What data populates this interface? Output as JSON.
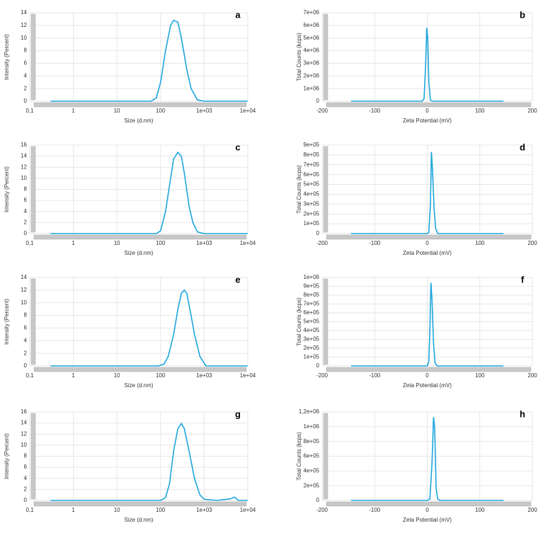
{
  "chart_data": [
    {
      "type": "line",
      "panel": "a",
      "xlabel": "Size (d.nm)",
      "ylabel": "Intensity (Percent)",
      "xscale": "log",
      "grid": true,
      "color": "#1ba6dd",
      "x": [
        0.3,
        60,
        80,
        100,
        130,
        170,
        200,
        250,
        300,
        400,
        500,
        700,
        1000,
        10000
      ],
      "values": [
        0,
        0,
        0.5,
        3,
        8,
        12,
        12.8,
        12.5,
        10,
        5,
        2,
        0.2,
        0,
        0
      ],
      "xlim": [
        0.1,
        10000
      ],
      "xticks": [
        {
          "value": 0.1,
          "label": "0,1"
        },
        1,
        10,
        100,
        {
          "value": 1000,
          "label": "1e+03"
        },
        {
          "value": 10000,
          "label": "1e+04"
        }
      ],
      "ylim": [
        0,
        14
      ],
      "yticks": [
        0,
        2,
        4,
        6,
        8,
        10,
        12,
        14
      ]
    },
    {
      "type": "line",
      "panel": "b",
      "xlabel": "Zeta Potential (mV)",
      "ylabel": "Total Counts (kcps)",
      "xscale": "linear",
      "grid": true,
      "color": "#1ba6dd",
      "x": [
        -145,
        -10,
        -6,
        -3,
        -1,
        1,
        3,
        6,
        10,
        145
      ],
      "values": [
        0,
        0,
        200000,
        3000000,
        5800000,
        5000000,
        1500000,
        100000,
        0,
        0
      ],
      "xlim": [
        -200,
        200
      ],
      "xticks": [
        -200,
        -100,
        0,
        100,
        200
      ],
      "ylim": [
        0,
        7000000
      ],
      "yticks": [
        0,
        {
          "value": 1000000,
          "label": "1e+06"
        },
        {
          "value": 2000000,
          "label": "2e+06"
        },
        {
          "value": 3000000,
          "label": "3e+06"
        },
        {
          "value": 4000000,
          "label": "4e+06"
        },
        {
          "value": 5000000,
          "label": "5e+06"
        },
        {
          "value": 6000000,
          "label": "6e+06"
        },
        {
          "value": 7000000,
          "label": "7e+06"
        }
      ]
    },
    {
      "type": "line",
      "panel": "c",
      "xlabel": "Size (d.nm)",
      "ylabel": "Intensity (Percent)",
      "xscale": "log",
      "grid": true,
      "color": "#1ba6dd",
      "x": [
        0.3,
        80,
        100,
        130,
        170,
        200,
        250,
        300,
        350,
        450,
        550,
        700,
        1000,
        10000
      ],
      "values": [
        0,
        0,
        0.5,
        4,
        10,
        13.5,
        14.7,
        14,
        11,
        5,
        2,
        0.3,
        0,
        0
      ],
      "xlim": [
        0.1,
        10000
      ],
      "xticks": [
        {
          "value": 0.1,
          "label": "0,1"
        },
        1,
        10,
        100,
        {
          "value": 1000,
          "label": "1e+03"
        },
        {
          "value": 10000,
          "label": "1e+04"
        }
      ],
      "ylim": [
        0,
        16
      ],
      "yticks": [
        0,
        2,
        4,
        6,
        8,
        10,
        12,
        14,
        16
      ]
    },
    {
      "type": "line",
      "panel": "d",
      "xlabel": "Zeta Potential (mV)",
      "ylabel": "Total Counts (kcps)",
      "xscale": "linear",
      "grid": true,
      "color": "#1ba6dd",
      "x": [
        -145,
        0,
        3,
        6,
        8,
        10,
        13,
        16,
        20,
        145
      ],
      "values": [
        0,
        0,
        10000,
        300000,
        830000,
        650000,
        250000,
        50000,
        0,
        0
      ],
      "xlim": [
        -200,
        200
      ],
      "xticks": [
        -200,
        -100,
        0,
        100,
        200
      ],
      "ylim": [
        0,
        900000
      ],
      "yticks": [
        0,
        {
          "value": 100000,
          "label": "1e+05"
        },
        {
          "value": 200000,
          "label": "2e+05"
        },
        {
          "value": 300000,
          "label": "3e+05"
        },
        {
          "value": 400000,
          "label": "4e+05"
        },
        {
          "value": 500000,
          "label": "5e+05"
        },
        {
          "value": 600000,
          "label": "6e+05"
        },
        {
          "value": 700000,
          "label": "7e+05"
        },
        {
          "value": 800000,
          "label": "8e+05"
        },
        {
          "value": 900000,
          "label": "9e+05"
        }
      ]
    },
    {
      "type": "line",
      "panel": "e",
      "xlabel": "Size (d.nm)",
      "ylabel": "Intensity (Percent)",
      "xscale": "log",
      "grid": true,
      "color": "#1ba6dd",
      "x": [
        0.3,
        90,
        120,
        150,
        200,
        250,
        300,
        350,
        400,
        500,
        600,
        800,
        1100,
        10000
      ],
      "values": [
        0,
        0,
        0.3,
        1.5,
        5,
        9,
        11.5,
        12,
        11.5,
        8,
        5,
        1.5,
        0,
        0
      ],
      "xlim": [
        0.1,
        10000
      ],
      "xticks": [
        {
          "value": 0.1,
          "label": "0,1"
        },
        1,
        10,
        100,
        {
          "value": 1000,
          "label": "1e+03"
        },
        {
          "value": 10000,
          "label": "1e+04"
        }
      ],
      "ylim": [
        0,
        14
      ],
      "yticks": [
        0,
        2,
        4,
        6,
        8,
        10,
        12,
        14
      ]
    },
    {
      "type": "line",
      "panel": "f",
      "xlabel": "Zeta Potential (mV)",
      "ylabel": "Total Counts (kcps)",
      "xscale": "linear",
      "grid": true,
      "color": "#1ba6dd",
      "x": [
        -145,
        0,
        3,
        5,
        7,
        9,
        12,
        15,
        19,
        145
      ],
      "values": [
        0,
        0,
        50000,
        400000,
        940000,
        750000,
        250000,
        30000,
        0,
        0
      ],
      "xlim": [
        -200,
        200
      ],
      "xticks": [
        -200,
        -100,
        0,
        100,
        200
      ],
      "ylim": [
        0,
        1000000
      ],
      "yticks": [
        0,
        {
          "value": 100000,
          "label": "1e+05"
        },
        {
          "value": 200000,
          "label": "2e+05"
        },
        {
          "value": 300000,
          "label": "3e+05"
        },
        {
          "value": 400000,
          "label": "4e+05"
        },
        {
          "value": 500000,
          "label": "5e+05"
        },
        {
          "value": 600000,
          "label": "6e+05"
        },
        {
          "value": 700000,
          "label": "7e+05"
        },
        {
          "value": 800000,
          "label": "8e+05"
        },
        {
          "value": 900000,
          "label": "9e+05"
        },
        {
          "value": 1000000,
          "label": "1e+06"
        }
      ]
    },
    {
      "type": "line",
      "panel": "g",
      "xlabel": "Size (d.nm)",
      "ylabel": "Intensity (Percent)",
      "xscale": "log",
      "grid": true,
      "color": "#1ba6dd",
      "x": [
        0.3,
        100,
        130,
        160,
        200,
        250,
        300,
        350,
        450,
        600,
        800,
        1000,
        2000,
        4000,
        5000,
        6000,
        10000
      ],
      "values": [
        0,
        0,
        0.5,
        3,
        9,
        13,
        13.9,
        13,
        9,
        4,
        1,
        0.2,
        0,
        0.3,
        0.6,
        0,
        0
      ],
      "xlim": [
        0.1,
        10000
      ],
      "xticks": [
        {
          "value": 0.1,
          "label": "0,1"
        },
        1,
        10,
        100,
        {
          "value": 1000,
          "label": "1e+03"
        },
        {
          "value": 10000,
          "label": "1e+04"
        }
      ],
      "ylim": [
        0,
        16
      ],
      "yticks": [
        0,
        2,
        4,
        6,
        8,
        10,
        12,
        14,
        16
      ]
    },
    {
      "type": "line",
      "panel": "h",
      "xlabel": "Zeta Potential (mV)",
      "ylabel": "Total Counts (kcps)",
      "xscale": "linear",
      "grid": true,
      "color": "#1ba6dd",
      "x": [
        -145,
        0,
        5,
        9,
        12,
        14,
        17,
        20,
        24,
        145
      ],
      "values": [
        0,
        0,
        20000,
        500000,
        1130000,
        1000000,
        150000,
        20000,
        0,
        0
      ],
      "xlim": [
        -200,
        200
      ],
      "xticks": [
        -200,
        -100,
        0,
        100,
        200
      ],
      "ylim": [
        0,
        1200000
      ],
      "yticks": [
        0,
        {
          "value": 200000,
          "label": "2e+05"
        },
        {
          "value": 400000,
          "label": "4e+05"
        },
        {
          "value": 600000,
          "label": "6e+05"
        },
        {
          "value": 800000,
          "label": "8e+05"
        },
        {
          "value": 1000000,
          "label": "1e+06"
        },
        {
          "value": 1200000,
          "label": "1,2e+06"
        }
      ]
    }
  ]
}
